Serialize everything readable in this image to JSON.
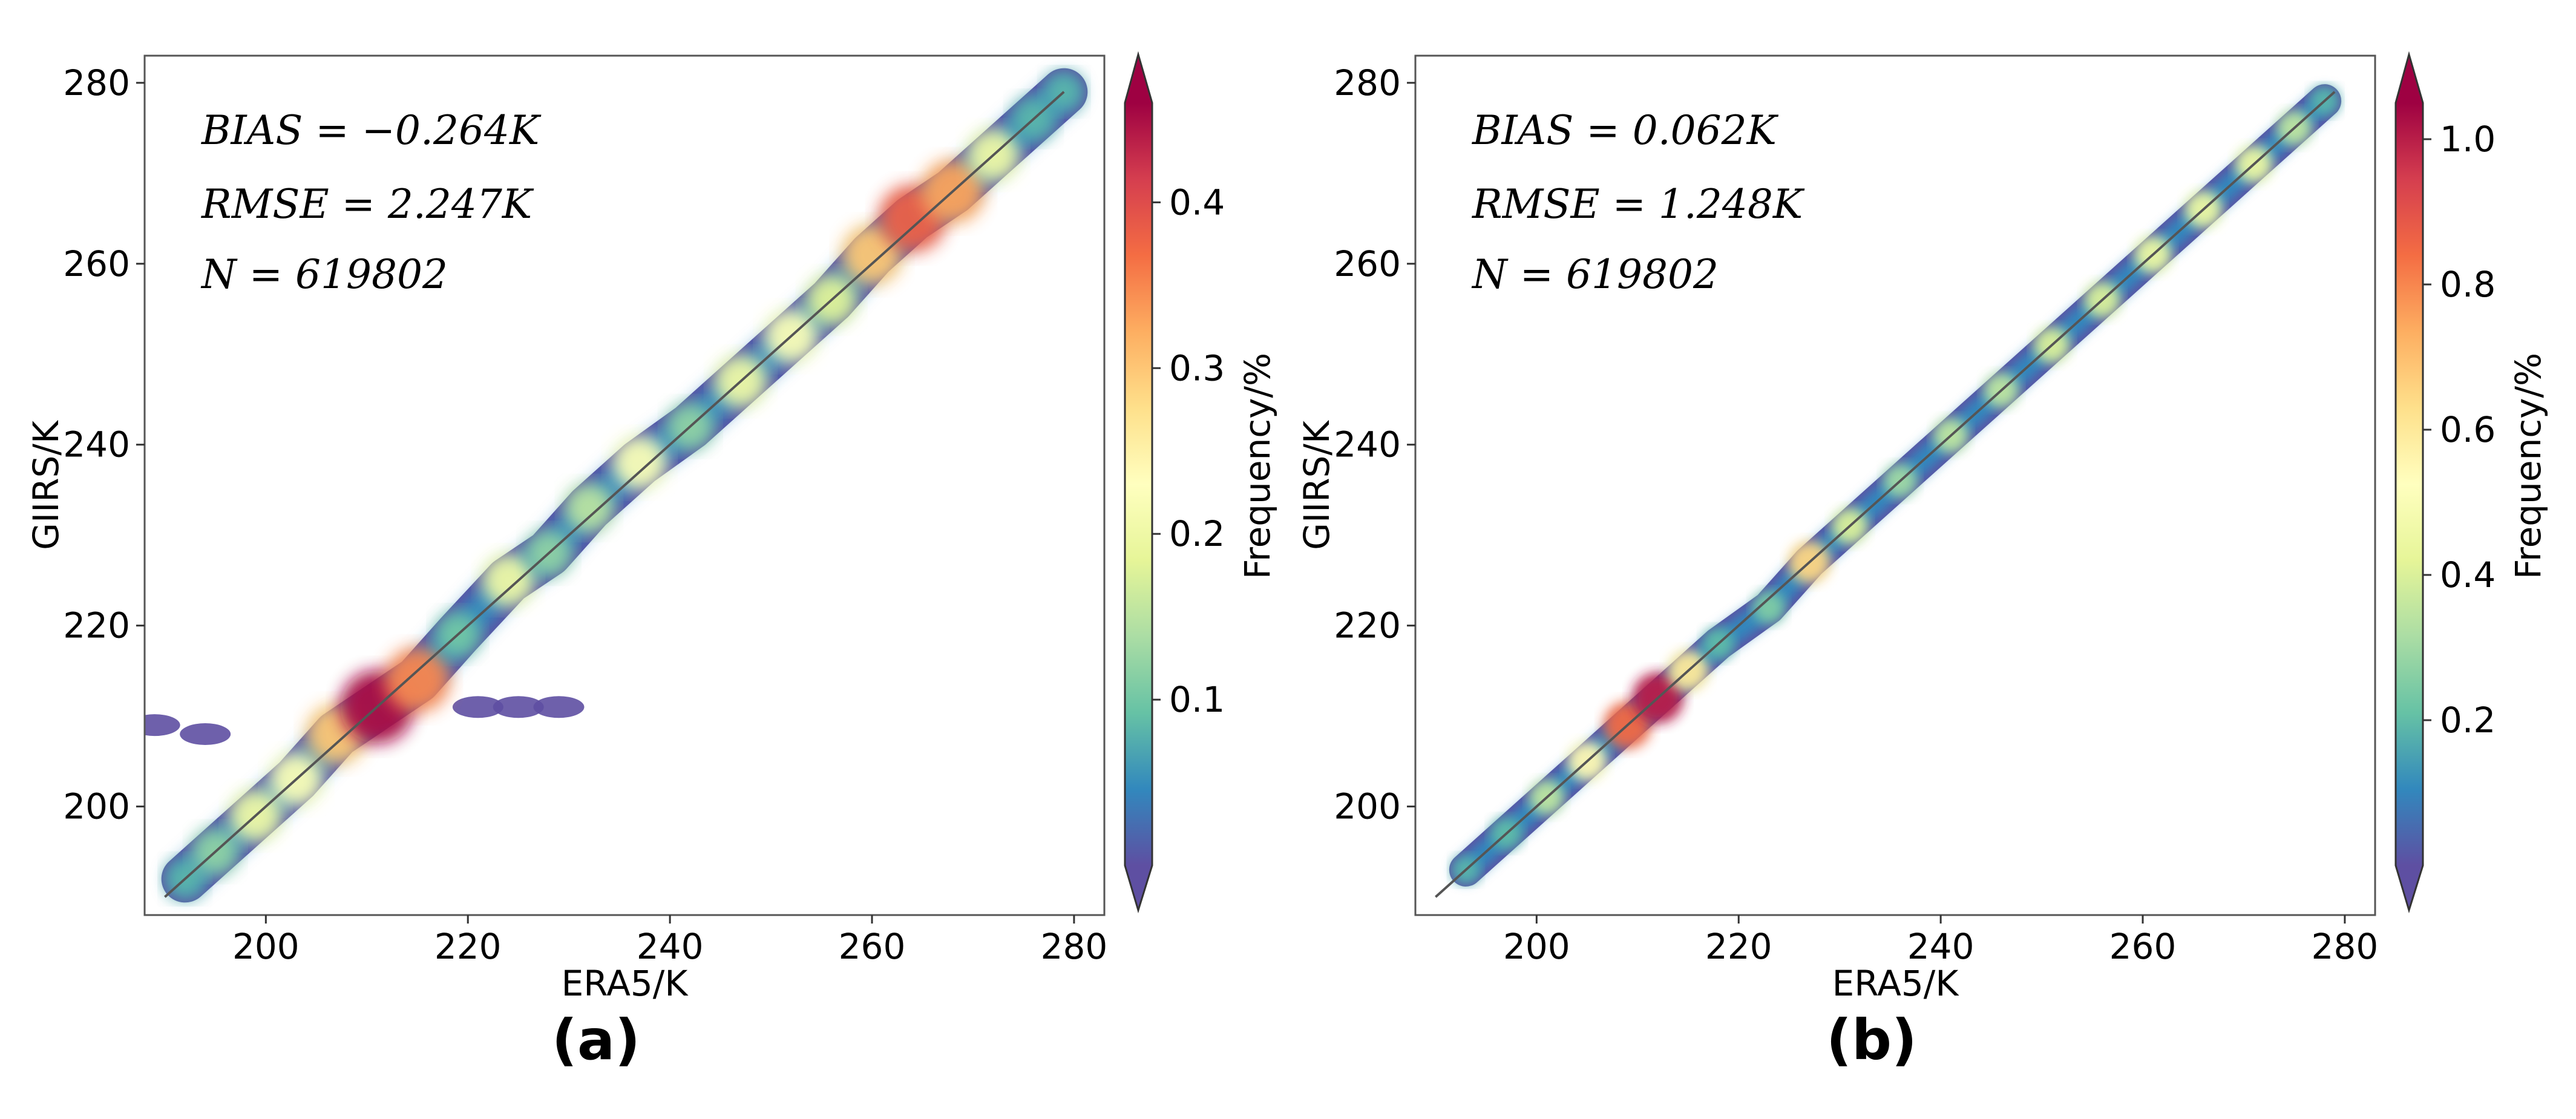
{
  "figure_labels": [
    "(a)",
    "(b)"
  ],
  "chart_data": [
    {
      "type": "scatter",
      "panel_label": "(a)",
      "title": "",
      "xlabel": "ERA5/K",
      "ylabel": "GIIRS/K",
      "xlim": [
        188,
        283
      ],
      "ylim": [
        188,
        283
      ],
      "x_ticks": [
        200,
        220,
        240,
        260,
        280
      ],
      "y_ticks": [
        200,
        220,
        240,
        260,
        280
      ],
      "grid": false,
      "reference_line": {
        "from": [
          190,
          190
        ],
        "to": [
          279,
          279
        ],
        "color": "#555555"
      },
      "stats": {
        "bias": "BIAS = −0.264K",
        "rmse": "RMSE = 2.247K",
        "n": "N = 619802"
      },
      "colorbar": {
        "label": "Frequency/%",
        "min": 0,
        "max": 0.46,
        "ticks": [
          0.1,
          0.2,
          0.3,
          0.4
        ],
        "tick_labels": [
          "0.1",
          "0.2",
          "0.3",
          "0.4"
        ],
        "extend": "both"
      },
      "density_series": [
        {
          "x": 192,
          "y": 192,
          "freq": 0.03
        },
        {
          "x": 195,
          "y": 195,
          "freq": 0.12
        },
        {
          "x": 199,
          "y": 199,
          "freq": 0.2
        },
        {
          "x": 203,
          "y": 203,
          "freq": 0.22
        },
        {
          "x": 207,
          "y": 208,
          "freq": 0.3
        },
        {
          "x": 211,
          "y": 211,
          "freq": 0.45
        },
        {
          "x": 215,
          "y": 214,
          "freq": 0.35
        },
        {
          "x": 219,
          "y": 219,
          "freq": 0.1
        },
        {
          "x": 224,
          "y": 225,
          "freq": 0.2
        },
        {
          "x": 228,
          "y": 228,
          "freq": 0.12
        },
        {
          "x": 232,
          "y": 233,
          "freq": 0.15
        },
        {
          "x": 237,
          "y": 238,
          "freq": 0.22
        },
        {
          "x": 242,
          "y": 242,
          "freq": 0.12
        },
        {
          "x": 247,
          "y": 247,
          "freq": 0.2
        },
        {
          "x": 252,
          "y": 252,
          "freq": 0.22
        },
        {
          "x": 256,
          "y": 256,
          "freq": 0.18
        },
        {
          "x": 260,
          "y": 261,
          "freq": 0.3
        },
        {
          "x": 264,
          "y": 265,
          "freq": 0.38
        },
        {
          "x": 268,
          "y": 268,
          "freq": 0.33
        },
        {
          "x": 272,
          "y": 272,
          "freq": 0.2
        },
        {
          "x": 276,
          "y": 276,
          "freq": 0.08
        },
        {
          "x": 279,
          "y": 279,
          "freq": 0.02
        }
      ],
      "outlier_cluster": [
        {
          "x": 221,
          "y": 211,
          "freq": 0.01
        },
        {
          "x": 225,
          "y": 211,
          "freq": 0.01
        },
        {
          "x": 229,
          "y": 211,
          "freq": 0.01
        },
        {
          "x": 189,
          "y": 209,
          "freq": 0.01
        },
        {
          "x": 194,
          "y": 208,
          "freq": 0.01
        }
      ]
    },
    {
      "type": "scatter",
      "panel_label": "(b)",
      "title": "",
      "xlabel": "ERA5/K",
      "ylabel": "GIIRS/K",
      "xlim": [
        188,
        283
      ],
      "ylim": [
        188,
        283
      ],
      "x_ticks": [
        200,
        220,
        240,
        260,
        280
      ],
      "y_ticks": [
        200,
        220,
        240,
        260,
        280
      ],
      "grid": false,
      "reference_line": {
        "from": [
          190,
          190
        ],
        "to": [
          279,
          279
        ],
        "color": "#555555"
      },
      "stats": {
        "bias": "BIAS = 0.062K",
        "rmse": "RMSE = 1.248K",
        "n": "N = 619802"
      },
      "colorbar": {
        "label": "Frequency/%",
        "min": 0,
        "max": 1.05,
        "ticks": [
          0.2,
          0.4,
          0.6,
          0.8,
          1.0
        ],
        "tick_labels": [
          "0.2",
          "0.4",
          "0.6",
          "0.8",
          "1.0"
        ],
        "extend": "both"
      },
      "density_series": [
        {
          "x": 193,
          "y": 193,
          "freq": 0.05
        },
        {
          "x": 197,
          "y": 197,
          "freq": 0.2
        },
        {
          "x": 201,
          "y": 201,
          "freq": 0.35
        },
        {
          "x": 205,
          "y": 205,
          "freq": 0.55
        },
        {
          "x": 209,
          "y": 209,
          "freq": 0.85
        },
        {
          "x": 212,
          "y": 212,
          "freq": 1.0
        },
        {
          "x": 215,
          "y": 215,
          "freq": 0.6
        },
        {
          "x": 218,
          "y": 218,
          "freq": 0.2
        },
        {
          "x": 223,
          "y": 222,
          "freq": 0.25
        },
        {
          "x": 227,
          "y": 227,
          "freq": 0.65
        },
        {
          "x": 231,
          "y": 231,
          "freq": 0.4
        },
        {
          "x": 236,
          "y": 236,
          "freq": 0.3
        },
        {
          "x": 241,
          "y": 241,
          "freq": 0.35
        },
        {
          "x": 246,
          "y": 246,
          "freq": 0.35
        },
        {
          "x": 251,
          "y": 251,
          "freq": 0.4
        },
        {
          "x": 256,
          "y": 256,
          "freq": 0.4
        },
        {
          "x": 261,
          "y": 261,
          "freq": 0.45
        },
        {
          "x": 266,
          "y": 266,
          "freq": 0.45
        },
        {
          "x": 271,
          "y": 271,
          "freq": 0.45
        },
        {
          "x": 275,
          "y": 275,
          "freq": 0.35
        },
        {
          "x": 278,
          "y": 278,
          "freq": 0.1
        }
      ],
      "outlier_cluster": []
    }
  ]
}
